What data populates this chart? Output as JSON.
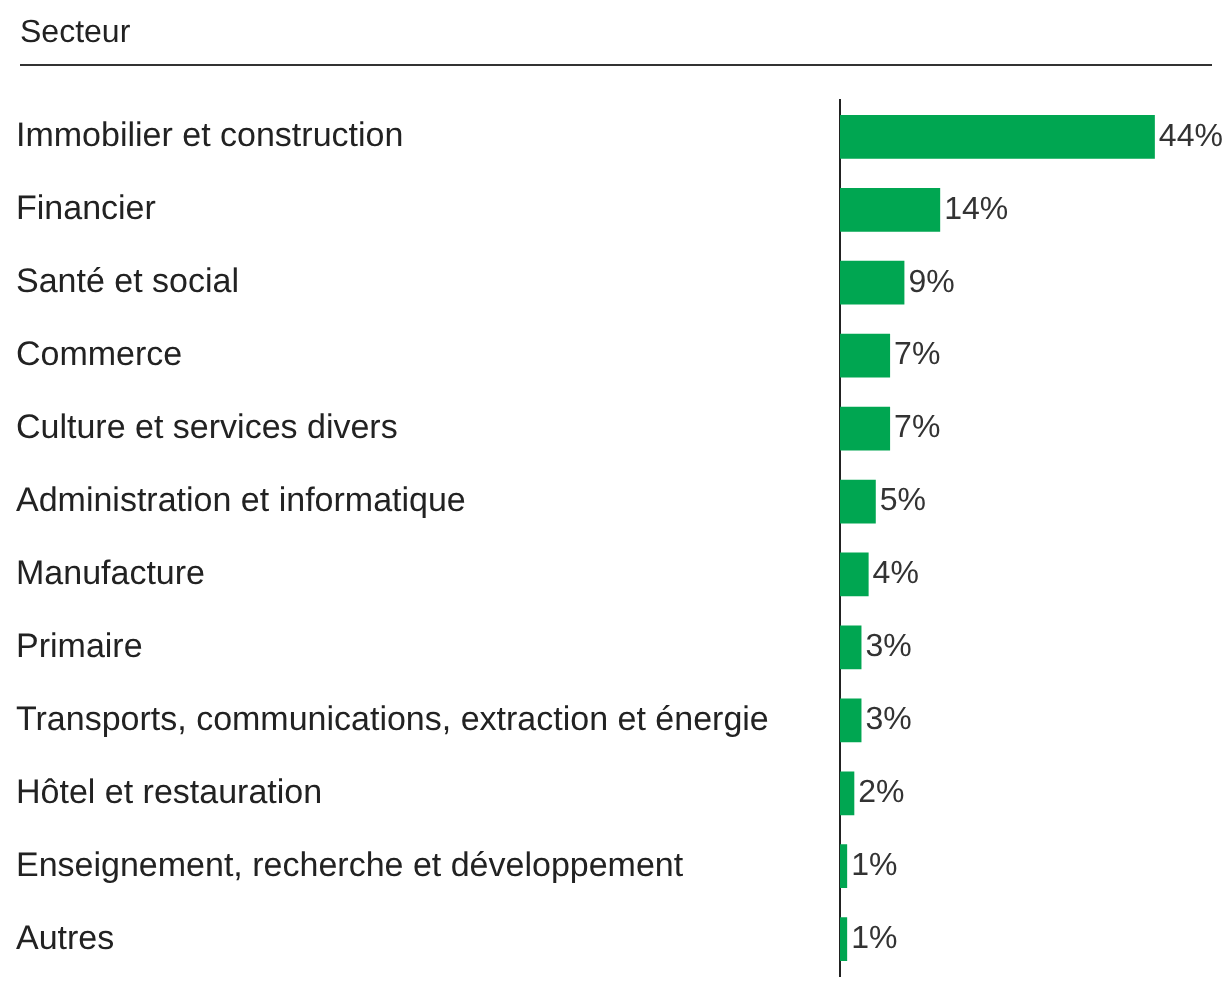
{
  "chart_data": {
    "type": "bar",
    "orientation": "horizontal",
    "title": "Secteur",
    "categories": [
      "Immobilier et construction",
      "Financier",
      "Santé et social",
      "Commerce",
      "Culture et services divers",
      "Administration et informatique",
      "Manufacture",
      "Primaire",
      "Transports, communications, extraction et énergie",
      "Hôtel et restauration",
      "Enseignement, recherche et développement",
      "Autres"
    ],
    "values": [
      44,
      14,
      9,
      7,
      7,
      5,
      4,
      3,
      3,
      2,
      1,
      1
    ],
    "value_labels": [
      "44%",
      "14%",
      "9%",
      "7%",
      "7%",
      "5%",
      "4%",
      "3%",
      "3%",
      "2%",
      "1%",
      "1%"
    ],
    "color": "#00a651",
    "legend": false
  }
}
